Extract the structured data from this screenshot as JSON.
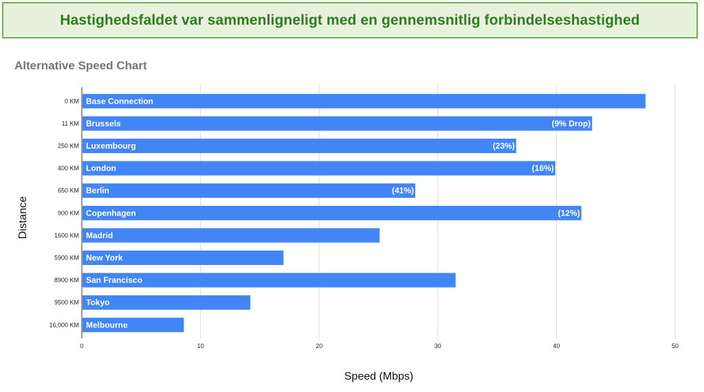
{
  "banner": {
    "text": "Hastighedsfaldet var sammenligneligt med en gennemsnitlig forbindelseshastighed"
  },
  "chart_data": {
    "type": "bar",
    "orientation": "horizontal",
    "title": "Alternative Speed Chart",
    "xlabel": "Speed (Mbps)",
    "ylabel": "Distance",
    "xlim": [
      0,
      50
    ],
    "x_ticks": [
      0,
      10,
      20,
      30,
      40,
      50
    ],
    "grid": true,
    "categories": [
      "0 KM",
      "11 KM",
      "250 KM",
      "400 KM",
      "650 KM",
      "900 KM",
      "1600 KM",
      "5900 KM",
      "8900 KM",
      "9500 KM",
      "16,000 KM"
    ],
    "bar_names": [
      "Base Connection",
      "Brussels",
      "Luxembourg",
      "London",
      "Berlin",
      "Copenhagen",
      "Madrid",
      "New York",
      "San Francisco",
      "Tokyo",
      "Melbourne"
    ],
    "values": [
      47.5,
      43.0,
      36.6,
      39.9,
      28.1,
      42.1,
      25.1,
      17.0,
      31.5,
      14.2,
      8.6
    ],
    "drop_labels": [
      "",
      "(9% Drop)",
      "(23%)",
      "(16%)",
      "(41%)",
      "(12%)",
      "",
      "",
      "",
      "",
      ""
    ],
    "bar_color": "#4285f4"
  }
}
